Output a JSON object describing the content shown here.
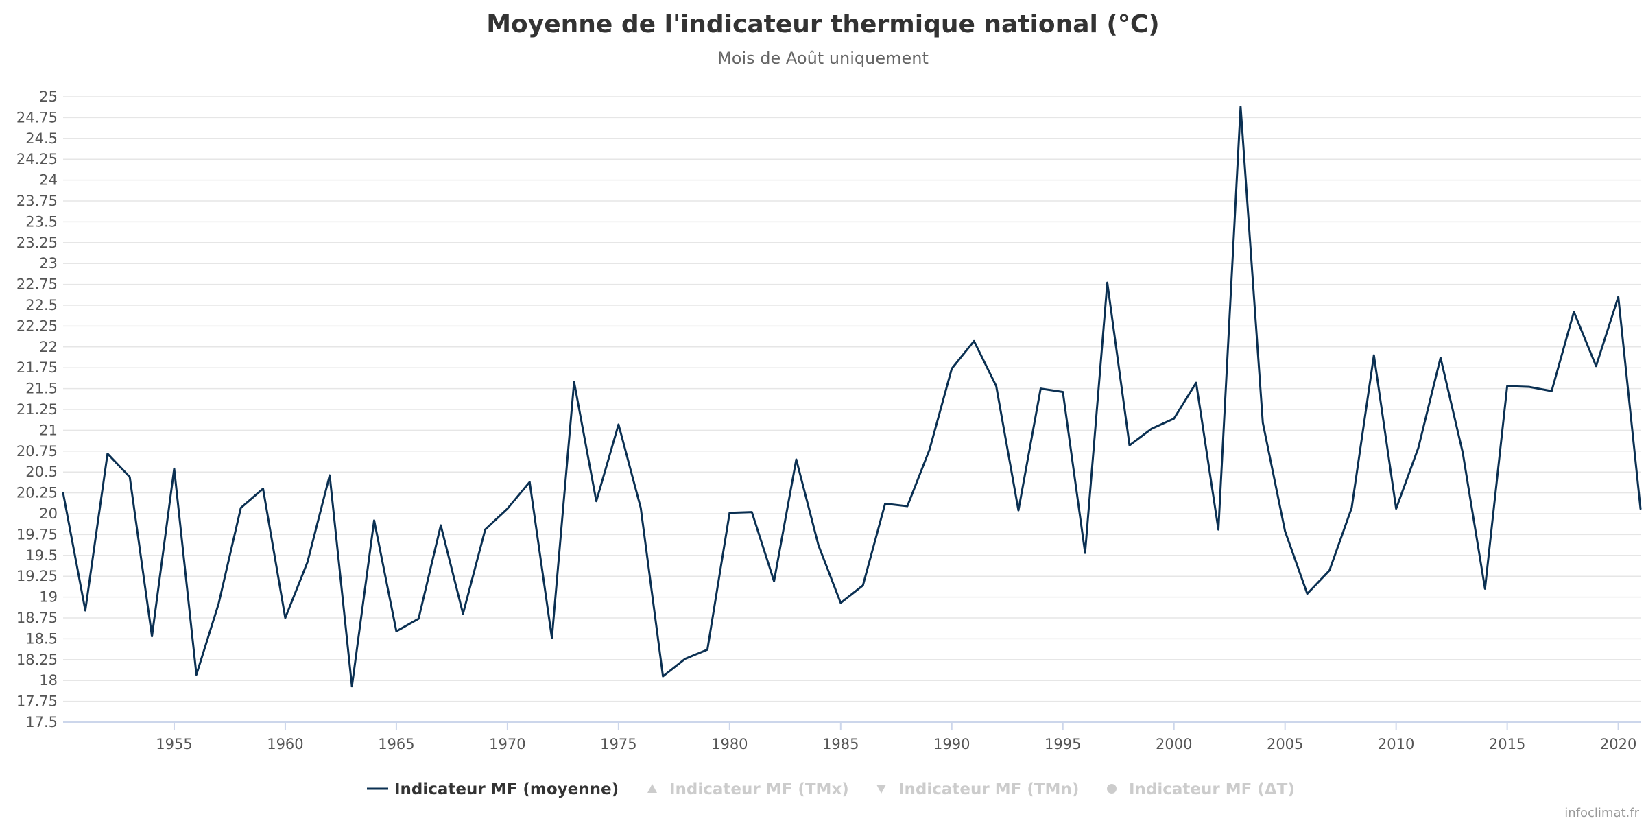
{
  "chart_data": {
    "type": "line",
    "title": "Moyenne de l'indicateur thermique national (°C)",
    "subtitle": "Mois de Août uniquement",
    "xlabel": "",
    "ylabel": "",
    "xlim": [
      1950,
      2021
    ],
    "ylim": [
      17.5,
      25
    ],
    "x_tick_labels": [
      "1955",
      "1960",
      "1965",
      "1970",
      "1975",
      "1980",
      "1985",
      "1990",
      "1995",
      "2000",
      "2005",
      "2010",
      "2015",
      "2020"
    ],
    "y_tick_labels": [
      "17.5",
      "17.75",
      "18",
      "18.25",
      "18.5",
      "18.75",
      "19",
      "19.25",
      "19.5",
      "19.75",
      "20",
      "20.25",
      "20.5",
      "20.75",
      "21",
      "21.25",
      "21.5",
      "21.75",
      "22",
      "22.25",
      "22.5",
      "22.75",
      "23",
      "23.25",
      "23.5",
      "23.75",
      "24",
      "24.25",
      "24.5",
      "24.75",
      "25"
    ],
    "grid": true,
    "legend_position": "bottom-center",
    "x": [
      1950,
      1951,
      1952,
      1953,
      1954,
      1955,
      1956,
      1957,
      1958,
      1959,
      1960,
      1961,
      1962,
      1963,
      1964,
      1965,
      1966,
      1967,
      1968,
      1969,
      1970,
      1971,
      1972,
      1973,
      1974,
      1975,
      1976,
      1977,
      1978,
      1979,
      1980,
      1981,
      1982,
      1983,
      1984,
      1985,
      1986,
      1987,
      1988,
      1989,
      1990,
      1991,
      1992,
      1993,
      1994,
      1995,
      1996,
      1997,
      1998,
      1999,
      2000,
      2001,
      2002,
      2003,
      2004,
      2005,
      2006,
      2007,
      2008,
      2009,
      2010,
      2011,
      2012,
      2013,
      2014,
      2015,
      2016,
      2017,
      2018,
      2019,
      2020,
      2021
    ],
    "series": [
      {
        "name": "Indicateur MF (moyenne)",
        "color": "#0b3052",
        "visible": true,
        "marker": "line",
        "values": [
          20.25,
          18.84,
          20.72,
          20.44,
          18.53,
          20.54,
          18.07,
          18.92,
          20.07,
          20.3,
          18.75,
          19.42,
          20.46,
          17.93,
          19.92,
          18.59,
          18.74,
          19.86,
          18.8,
          19.81,
          20.06,
          20.38,
          18.51,
          21.58,
          20.15,
          21.07,
          20.07,
          18.05,
          18.26,
          18.37,
          20.01,
          20.02,
          19.19,
          20.65,
          19.62,
          18.93,
          19.14,
          20.12,
          20.09,
          20.77,
          21.74,
          22.07,
          21.53,
          20.04,
          21.5,
          21.46,
          19.53,
          22.77,
          20.82,
          21.02,
          21.14,
          21.57,
          19.81,
          24.88,
          21.09,
          19.79,
          19.04,
          19.32,
          20.07,
          21.9,
          20.06,
          20.79,
          21.87,
          20.73,
          19.1,
          21.53,
          21.52,
          21.47,
          22.42,
          21.77,
          22.6,
          20.06
        ]
      },
      {
        "name": "Indicateur MF (TMx)",
        "color": "#cccccc",
        "visible": false,
        "marker": "triangle"
      },
      {
        "name": "Indicateur MF (TMn)",
        "color": "#cccccc",
        "visible": false,
        "marker": "triangle-down"
      },
      {
        "name": "Indicateur MF (ΔT)",
        "color": "#cccccc",
        "visible": false,
        "marker": "circle"
      }
    ]
  },
  "credit": "infoclimat.fr"
}
